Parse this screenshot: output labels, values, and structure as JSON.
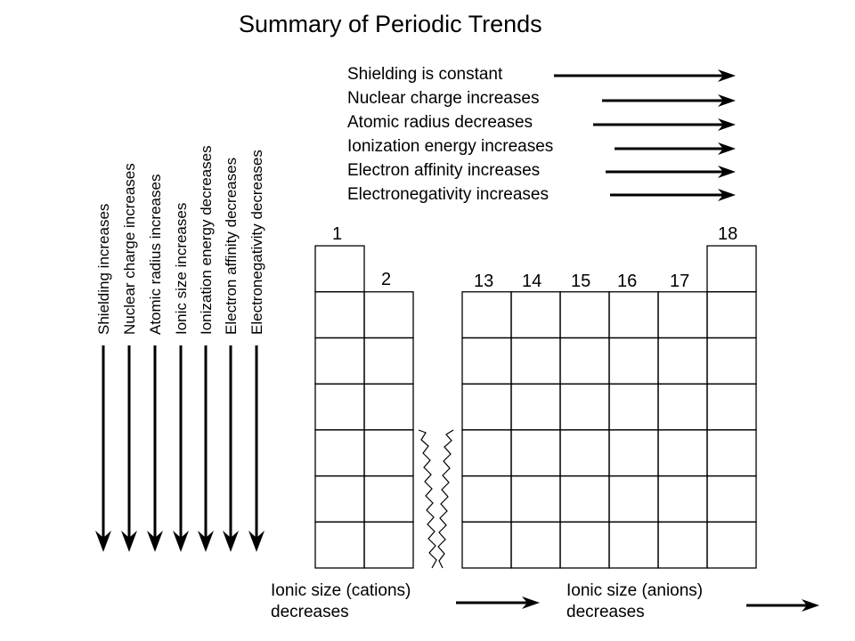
{
  "title": "Summary of Periodic Trends",
  "horizontal_trends": [
    "Shielding is constant",
    "Nuclear charge increases",
    "Atomic radius decreases",
    "Ionization energy increases",
    "Electron affinity increases",
    "Electronegativity increases"
  ],
  "vertical_trends": [
    "Shielding increases",
    "Nuclear charge increases",
    "Atomic radius increases",
    "Ionic size increases",
    "Ionization energy decreases",
    "Electron affinity decreases",
    "Electronegativity decreases"
  ],
  "group_labels": [
    "1",
    "2",
    "13",
    "14",
    "15",
    "16",
    "17",
    "18"
  ],
  "ionic_size_cations": {
    "line1": "Ionic size (cations)",
    "line2": "decreases"
  },
  "ionic_size_anions": {
    "line1": "Ionic size (anions)",
    "line2": "decreases"
  },
  "table_rows": {
    "group_1": 7,
    "group_2": 6,
    "groups_13_17": 6,
    "group_18": 7
  }
}
